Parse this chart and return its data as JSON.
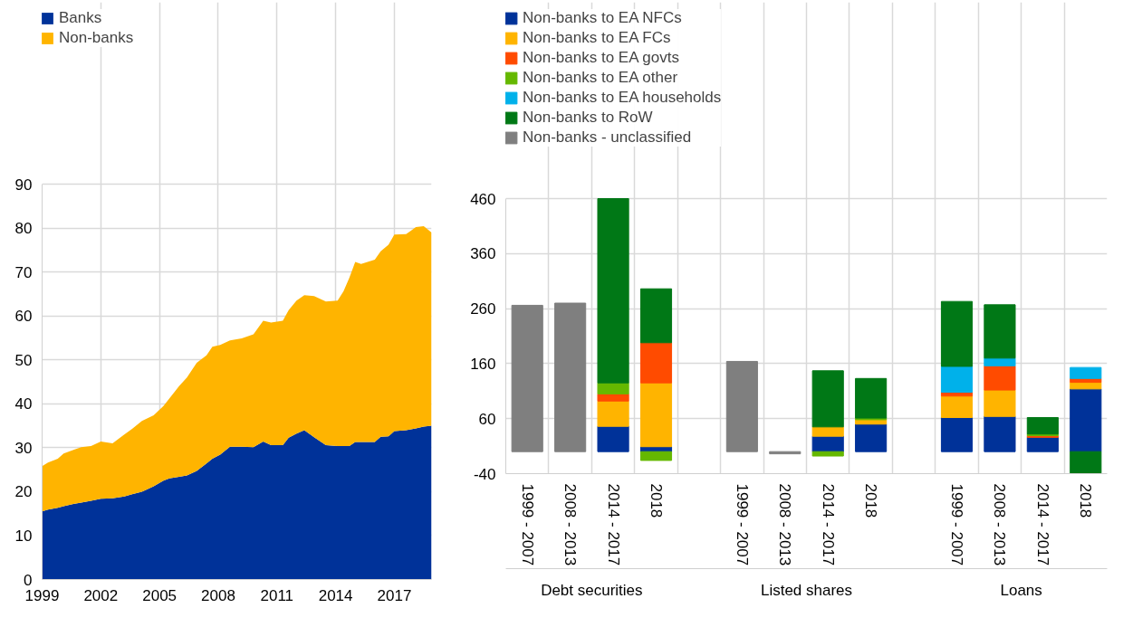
{
  "chart_data": [
    {
      "type": "area",
      "stacked": true,
      "legend": "top left",
      "grid": true,
      "x": [
        1999.0,
        1999.3,
        1999.8,
        2000.1,
        2000.6,
        2001.0,
        2001.5,
        2002.0,
        2002.6,
        2003.2,
        2003.6,
        2004.1,
        2004.7,
        2005.2,
        2005.5,
        2006.0,
        2006.4,
        2006.9,
        2007.4,
        2007.7,
        2008.1,
        2008.6,
        2009.2,
        2009.8,
        2010.3,
        2010.7,
        2011.3,
        2011.6,
        2012.0,
        2012.4,
        2012.9,
        2013.5,
        2014.1,
        2014.4,
        2014.7,
        2015.0,
        2015.3,
        2016.0,
        2016.3,
        2016.7,
        2017.0,
        2017.6,
        2018.1,
        2018.5,
        2018.9
      ],
      "series": [
        {
          "name": "Banks",
          "color": "#003299",
          "values": [
            15.5,
            15.9,
            16.3,
            16.7,
            17.2,
            17.5,
            17.9,
            18.4,
            18.5,
            18.9,
            19.4,
            20.0,
            21.2,
            22.5,
            23.0,
            23.4,
            23.7,
            24.7,
            26.4,
            27.5,
            28.4,
            30.2,
            30.2,
            30.1,
            31.4,
            30.6,
            30.6,
            32.3,
            33.2,
            34.0,
            32.4,
            30.6,
            30.4,
            30.4,
            30.4,
            31.3,
            31.3,
            31.3,
            32.5,
            32.6,
            33.8,
            34.0,
            34.4,
            34.8,
            35.0
          ]
        },
        {
          "name": "Non-banks",
          "color": "#ffb400",
          "values": [
            10.3,
            10.7,
            11.2,
            12.0,
            12.3,
            12.6,
            12.5,
            13.0,
            12.5,
            14.1,
            14.9,
            16.1,
            16.2,
            17.0,
            18.2,
            20.6,
            22.3,
            24.6,
            24.6,
            25.5,
            25.0,
            24.2,
            24.7,
            25.7,
            27.5,
            27.9,
            28.3,
            29.0,
            30.3,
            30.7,
            32.1,
            32.7,
            33.1,
            35.2,
            38.3,
            41.0,
            40.5,
            41.5,
            42.2,
            43.6,
            44.7,
            44.6,
            45.8,
            45.6,
            44.0
          ]
        }
      ],
      "xlim": [
        1999,
        2018.9
      ],
      "xticks": [
        1999,
        2002,
        2005,
        2008,
        2011,
        2014,
        2017
      ],
      "ylim": [
        0,
        90
      ],
      "yticks": [
        0,
        10,
        20,
        30,
        40,
        50,
        60,
        70,
        80,
        90
      ]
    },
    {
      "type": "bar",
      "stacked": true,
      "legend": "top left",
      "grid": true,
      "categories": [
        "1999 - 2007",
        "2008 - 2013",
        "2014 - 2017",
        "2018",
        null,
        "1999 - 2007",
        "2008 - 2013",
        "2014 - 2017",
        "2018",
        null,
        "1999 - 2007",
        "2008 - 2013",
        "2014 - 2017",
        "2018"
      ],
      "series": [
        {
          "name": "Non-banks to EA NFCs",
          "color": "#003299",
          "values": [
            null,
            null,
            46,
            9,
            null,
            null,
            null,
            28,
            50,
            null,
            62,
            64,
            26,
            114
          ]
        },
        {
          "name": "Non-banks to EA FCs",
          "color": "#ffb400",
          "values": [
            null,
            null,
            46,
            116,
            null,
            null,
            null,
            17,
            8,
            null,
            39,
            48,
            null,
            12
          ]
        },
        {
          "name": "Non-banks to EA govts",
          "color": "#ff4b00",
          "values": [
            null,
            null,
            13,
            73,
            null,
            null,
            null,
            null,
            null,
            null,
            7,
            44,
            3,
            7
          ]
        },
        {
          "name": "Non-banks to EA other",
          "color": "#65b800",
          "values": [
            null,
            null,
            20,
            -16,
            null,
            null,
            null,
            -8,
            3,
            null,
            null,
            null,
            3,
            null
          ]
        },
        {
          "name": "Non-banks to EA households",
          "color": "#00b1ea",
          "values": [
            null,
            null,
            null,
            null,
            null,
            null,
            null,
            null,
            null,
            null,
            47,
            14,
            null,
            20
          ]
        },
        {
          "name": "Non-banks to RoW",
          "color": "#007816",
          "values": [
            null,
            null,
            335,
            98,
            null,
            null,
            null,
            102,
            72,
            null,
            118,
            97,
            30,
            -39
          ]
        },
        {
          "name": "Non-banks - unclassified",
          "color": "#7f7f7f",
          "values": [
            266,
            270,
            null,
            null,
            null,
            164,
            -4,
            null,
            null,
            null,
            null,
            null,
            null,
            null
          ]
        }
      ],
      "ylim": [
        -40,
        460
      ],
      "yticks": [
        -40,
        60,
        160,
        260,
        360,
        460
      ],
      "annotations": [
        "Debt securities",
        "Listed shares",
        "Loans"
      ]
    }
  ]
}
